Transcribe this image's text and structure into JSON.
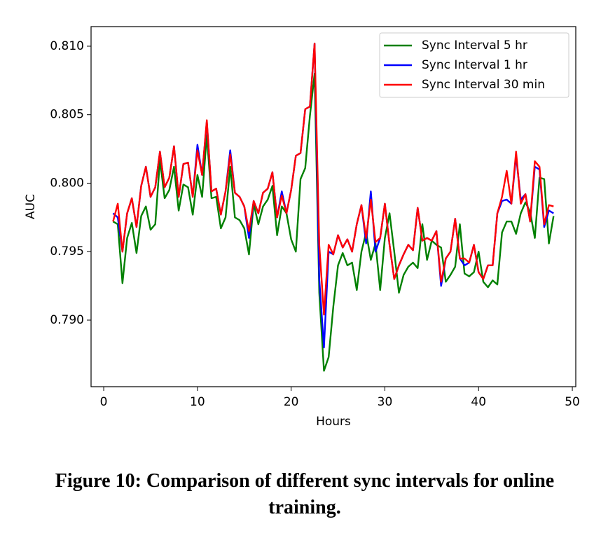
{
  "chart_data": {
    "type": "line",
    "xlabel": "Hours",
    "ylabel": "AUC",
    "caption": "Figure 10: Comparison of different sync intervals for online training.",
    "x": [
      1,
      1.5,
      2,
      2.5,
      3,
      3.5,
      4,
      4.5,
      5,
      5.5,
      6,
      6.5,
      7,
      7.5,
      8,
      8.5,
      9,
      9.5,
      10,
      10.5,
      11,
      11.5,
      12,
      12.5,
      13,
      13.5,
      14,
      14.5,
      15,
      15.5,
      16,
      16.5,
      17,
      17.5,
      18,
      18.5,
      19,
      19.5,
      20,
      20.5,
      21,
      21.5,
      22,
      22.5,
      23,
      23.5,
      24,
      24.5,
      25,
      25.5,
      26,
      26.5,
      27,
      27.5,
      28,
      28.5,
      29,
      29.5,
      30,
      30.5,
      31,
      31.5,
      32,
      32.5,
      33,
      33.5,
      34,
      34.5,
      35,
      35.5,
      36,
      36.5,
      37,
      37.5,
      38,
      38.5,
      39,
      39.5,
      40,
      40.5,
      41,
      41.5,
      42,
      42.5,
      43,
      43.5,
      44,
      44.5,
      45,
      45.5,
      46,
      46.5,
      47,
      47.5,
      48
    ],
    "series": [
      {
        "name": "Sync Interval 5 hr",
        "color": "#008000",
        "values": [
          0.7972,
          0.797,
          0.7927,
          0.796,
          0.7971,
          0.7949,
          0.7976,
          0.7983,
          0.7966,
          0.797,
          0.8017,
          0.7989,
          0.7995,
          0.8012,
          0.798,
          0.7999,
          0.7997,
          0.7977,
          0.8006,
          0.799,
          0.8035,
          0.7989,
          0.799,
          0.7967,
          0.7975,
          0.8012,
          0.7975,
          0.7973,
          0.7967,
          0.7948,
          0.7985,
          0.797,
          0.7983,
          0.7988,
          0.7998,
          0.7962,
          0.7983,
          0.7978,
          0.7959,
          0.795,
          0.8003,
          0.8011,
          0.8049,
          0.808,
          0.792,
          0.7863,
          0.7873,
          0.791,
          0.794,
          0.7949,
          0.794,
          0.7942,
          0.7922,
          0.795,
          0.7964,
          0.7944,
          0.7956,
          0.7922,
          0.796,
          0.7978,
          0.795,
          0.792,
          0.7933,
          0.7939,
          0.7942,
          0.7938,
          0.797,
          0.7944,
          0.7958,
          0.7955,
          0.7953,
          0.7928,
          0.7933,
          0.7939,
          0.797,
          0.7934,
          0.7932,
          0.7935,
          0.795,
          0.7928,
          0.7924,
          0.7929,
          0.7926,
          0.7964,
          0.7972,
          0.7972,
          0.7963,
          0.7978,
          0.7986,
          0.7979,
          0.796,
          0.8004,
          0.8003,
          0.7956,
          0.7976
        ]
      },
      {
        "name": "Sync Interval 1 hr",
        "color": "#0000ff",
        "values": [
          0.7978,
          0.7975,
          0.795,
          0.7978,
          0.7989,
          0.7968,
          0.7998,
          0.8012,
          0.799,
          0.7997,
          0.8023,
          0.7997,
          0.8004,
          0.8027,
          0.799,
          0.8014,
          0.8015,
          0.799,
          0.8028,
          0.8006,
          0.8045,
          0.7994,
          0.7996,
          0.7977,
          0.7994,
          0.8024,
          0.7993,
          0.799,
          0.7983,
          0.796,
          0.7987,
          0.7978,
          0.7993,
          0.7996,
          0.8008,
          0.7975,
          0.7994,
          0.7978,
          0.7995,
          0.802,
          0.8022,
          0.8054,
          0.8056,
          0.8102,
          0.793,
          0.788,
          0.795,
          0.7948,
          0.7962,
          0.7953,
          0.7959,
          0.795,
          0.797,
          0.7984,
          0.7956,
          0.7994,
          0.795,
          0.796,
          0.7985,
          0.7955,
          0.793,
          0.794,
          0.7948,
          0.7955,
          0.7951,
          0.7982,
          0.7958,
          0.796,
          0.7958,
          0.7965,
          0.7925,
          0.7945,
          0.795,
          0.7974,
          0.7945,
          0.794,
          0.7942,
          0.7955,
          0.7935,
          0.793,
          0.794,
          0.794,
          0.7978,
          0.7987,
          0.7988,
          0.7985,
          0.802,
          0.7988,
          0.7992,
          0.7972,
          0.8012,
          0.801,
          0.7968,
          0.798,
          0.7978
        ]
      },
      {
        "name": "Sync Interval 30 min",
        "color": "#ff0000",
        "values": [
          0.7972,
          0.7985,
          0.795,
          0.7978,
          0.7989,
          0.7968,
          0.7998,
          0.8012,
          0.799,
          0.7997,
          0.8023,
          0.7997,
          0.8004,
          0.8027,
          0.799,
          0.8014,
          0.8015,
          0.799,
          0.8024,
          0.8006,
          0.8046,
          0.7994,
          0.7996,
          0.7977,
          0.7994,
          0.8021,
          0.7993,
          0.799,
          0.7983,
          0.7965,
          0.7987,
          0.7978,
          0.7993,
          0.7996,
          0.8008,
          0.7975,
          0.7991,
          0.7978,
          0.7995,
          0.802,
          0.8022,
          0.8054,
          0.8056,
          0.8102,
          0.7955,
          0.7904,
          0.7955,
          0.7948,
          0.7962,
          0.7953,
          0.7959,
          0.795,
          0.797,
          0.7984,
          0.796,
          0.7988,
          0.7957,
          0.796,
          0.7985,
          0.7955,
          0.793,
          0.794,
          0.7948,
          0.7955,
          0.7951,
          0.7982,
          0.7958,
          0.796,
          0.7958,
          0.7965,
          0.7928,
          0.7945,
          0.795,
          0.7974,
          0.7945,
          0.7945,
          0.7942,
          0.7955,
          0.7935,
          0.793,
          0.794,
          0.794,
          0.7978,
          0.799,
          0.8009,
          0.7985,
          0.8023,
          0.7985,
          0.7992,
          0.7972,
          0.8016,
          0.8012,
          0.797,
          0.7984,
          0.7983
        ]
      }
    ],
    "xlim": [
      -1.35,
      50.37
    ],
    "xticks": [
      0,
      10,
      20,
      30,
      40,
      50
    ],
    "ylim": [
      0.78514,
      0.81143
    ],
    "yticks": [
      {
        "value": 0.79,
        "label": "0.790"
      },
      {
        "value": 0.795,
        "label": "0.795"
      },
      {
        "value": 0.8,
        "label": "0.800"
      },
      {
        "value": 0.805,
        "label": "0.805"
      },
      {
        "value": 0.81,
        "label": "0.810"
      }
    ],
    "legend": "upper right",
    "grid": false
  }
}
